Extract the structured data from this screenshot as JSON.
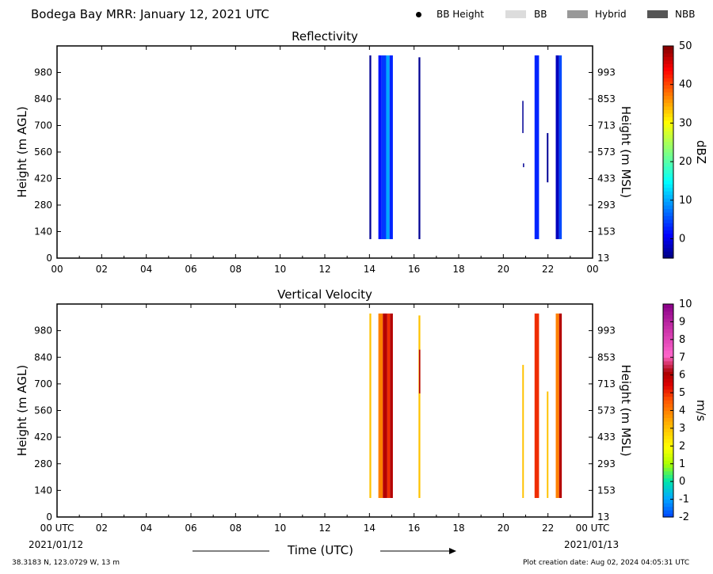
{
  "header": {
    "title": "Bodega Bay MRR:  January 12, 2021 UTC"
  },
  "legend": {
    "items": [
      {
        "label": "BB Height",
        "color": "#000000",
        "marker": "dot"
      },
      {
        "label": "BB",
        "color": "#dcdcdc",
        "marker": "box"
      },
      {
        "label": "Hybrid",
        "color": "#999999",
        "marker": "box"
      },
      {
        "label": "NBB",
        "color": "#555555",
        "marker": "box"
      }
    ]
  },
  "footer": {
    "location": "38.3183 N, 123.0729 W, 13 m",
    "created": "Plot creation date: Aug 02, 2024 04:05:31 UTC",
    "xlabel": "Time (UTC)",
    "date_start": "2021/01/12",
    "date_end": "2021/01/13"
  },
  "chart_data": [
    {
      "type": "heatmap",
      "title": "Reflectivity",
      "xlabel": "",
      "ylabel": "Height (m AGL)",
      "ylabel_right": "Height (m MSL)",
      "x_ticks": [
        "00",
        "02",
        "04",
        "06",
        "08",
        "10",
        "12",
        "14",
        "16",
        "18",
        "20",
        "22",
        "00"
      ],
      "xlim": [
        0,
        24
      ],
      "ylim": [
        0,
        1120
      ],
      "y_ticks": [
        0,
        140,
        280,
        420,
        560,
        700,
        840,
        980
      ],
      "y_ticks_right": [
        13,
        153,
        293,
        433,
        573,
        713,
        853,
        993
      ],
      "colorbar": {
        "label": "dBZ",
        "ticks": [
          0,
          10,
          20,
          30,
          40,
          50
        ],
        "range": [
          -5,
          50
        ]
      },
      "series": [
        {
          "x0": 14.0,
          "x1": 14.08,
          "y0": 100,
          "y1": 1070,
          "value": -4
        },
        {
          "x0": 14.4,
          "x1": 14.55,
          "y0": 100,
          "y1": 1070,
          "value": 2
        },
        {
          "x0": 14.55,
          "x1": 14.75,
          "y0": 100,
          "y1": 1070,
          "value": 4
        },
        {
          "x0": 14.75,
          "x1": 14.9,
          "y0": 100,
          "y1": 1070,
          "value": 10
        },
        {
          "x0": 14.9,
          "x1": 15.05,
          "y0": 100,
          "y1": 1070,
          "value": 3
        },
        {
          "x0": 16.2,
          "x1": 16.28,
          "y0": 100,
          "y1": 1060,
          "value": -4
        },
        {
          "x0": 20.85,
          "x1": 20.9,
          "y0": 660,
          "y1": 830,
          "value": -4
        },
        {
          "x0": 20.88,
          "x1": 20.92,
          "y0": 480,
          "y1": 500,
          "value": -4
        },
        {
          "x0": 21.4,
          "x1": 21.6,
          "y0": 100,
          "y1": 1070,
          "value": 3
        },
        {
          "x0": 21.95,
          "x1": 22.02,
          "y0": 400,
          "y1": 660,
          "value": -4
        },
        {
          "x0": 22.35,
          "x1": 22.5,
          "y0": 100,
          "y1": 1070,
          "value": -2
        },
        {
          "x0": 22.5,
          "x1": 22.62,
          "y0": 100,
          "y1": 1070,
          "value": 5
        }
      ]
    },
    {
      "type": "heatmap",
      "title": "Vertical Velocity",
      "xlabel": "",
      "ylabel": "Height (m AGL)",
      "ylabel_right": "Height (m MSL)",
      "x_ticks": [
        "00 UTC",
        "02",
        "04",
        "06",
        "08",
        "10",
        "12",
        "14",
        "16",
        "18",
        "20",
        "22",
        "00 UTC"
      ],
      "xlim": [
        0,
        24
      ],
      "ylim": [
        0,
        1120
      ],
      "y_ticks": [
        0,
        140,
        280,
        420,
        560,
        700,
        840,
        980
      ],
      "y_ticks_right": [
        13,
        153,
        293,
        433,
        573,
        713,
        853,
        993
      ],
      "colorbar": {
        "label": "m/s",
        "ticks": [
          -2,
          -1,
          0,
          1,
          2,
          3,
          4,
          5,
          6,
          7,
          8,
          9,
          10
        ],
        "range": [
          -2,
          10
        ]
      },
      "series": [
        {
          "x0": 14.0,
          "x1": 14.08,
          "y0": 100,
          "y1": 1070,
          "value": 3
        },
        {
          "x0": 14.4,
          "x1": 14.6,
          "y0": 100,
          "y1": 1070,
          "value": 4
        },
        {
          "x0": 14.6,
          "x1": 14.8,
          "y0": 100,
          "y1": 1070,
          "value": 6
        },
        {
          "x0": 14.8,
          "x1": 14.92,
          "y0": 100,
          "y1": 1070,
          "value": 5
        },
        {
          "x0": 14.92,
          "x1": 15.05,
          "y0": 100,
          "y1": 1070,
          "value": 6
        },
        {
          "x0": 16.2,
          "x1": 16.28,
          "y0": 100,
          "y1": 1060,
          "value": 3
        },
        {
          "x0": 16.22,
          "x1": 16.28,
          "y0": 650,
          "y1": 880,
          "value": 6
        },
        {
          "x0": 20.85,
          "x1": 20.92,
          "y0": 100,
          "y1": 800,
          "value": 3
        },
        {
          "x0": 21.4,
          "x1": 21.6,
          "y0": 100,
          "y1": 1070,
          "value": 5
        },
        {
          "x0": 21.95,
          "x1": 22.02,
          "y0": 100,
          "y1": 660,
          "value": 3
        },
        {
          "x0": 22.35,
          "x1": 22.5,
          "y0": 100,
          "y1": 1070,
          "value": 4
        },
        {
          "x0": 22.5,
          "x1": 22.62,
          "y0": 100,
          "y1": 1070,
          "value": 6
        }
      ]
    }
  ]
}
